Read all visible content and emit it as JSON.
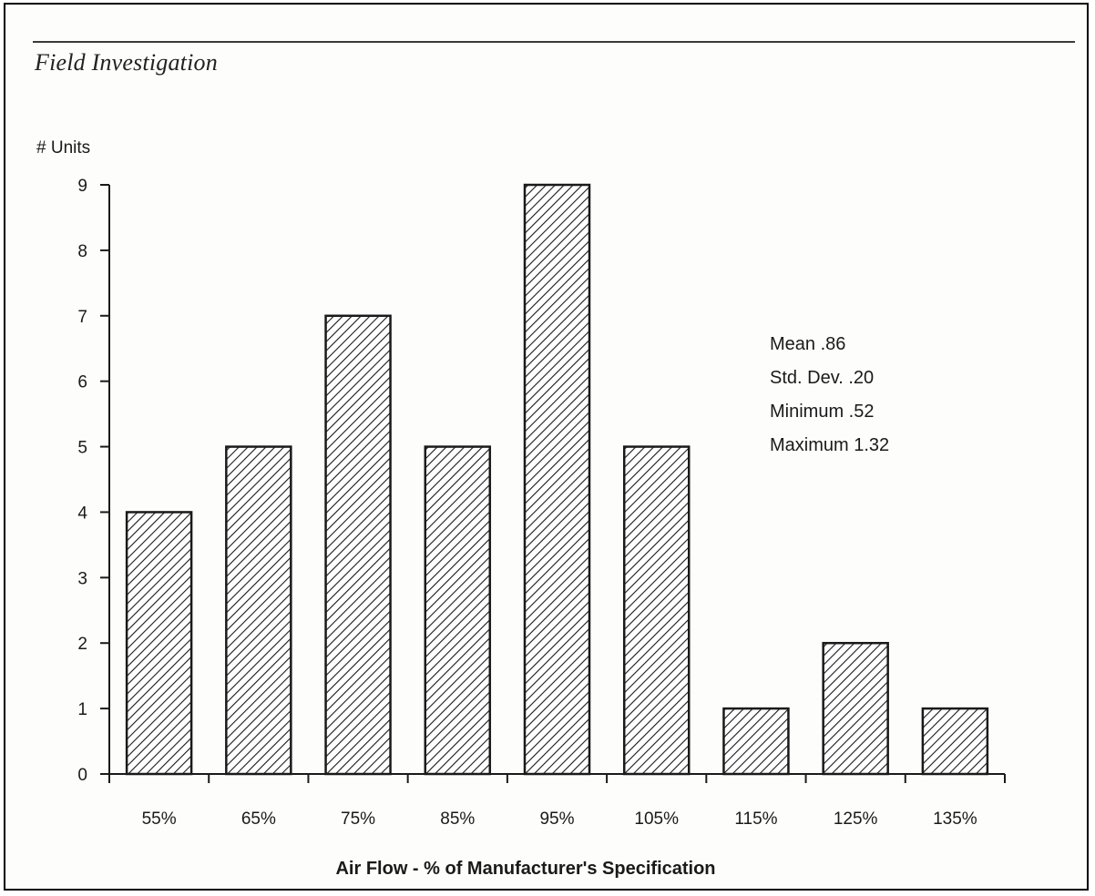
{
  "section_title": "Field Investigation",
  "chart_data": {
    "type": "bar",
    "categories": [
      "55%",
      "65%",
      "75%",
      "85%",
      "95%",
      "105%",
      "115%",
      "125%",
      "135%"
    ],
    "values": [
      4,
      5,
      7,
      5,
      9,
      5,
      1,
      2,
      1
    ],
    "ylabel": "# Units",
    "xlabel": "Air Flow - % of Manufacturer's Specification",
    "ylim": [
      0,
      9
    ],
    "yticks": [
      0,
      1,
      2,
      3,
      4,
      5,
      6,
      7,
      8,
      9
    ],
    "grid": false,
    "bar_fill": "diagonal hatch",
    "bar_color": "#1a1a1a",
    "annotations": [
      "Mean .86",
      "Std. Dev. .20",
      "Minimum .52",
      "Maximum 1.32"
    ]
  }
}
